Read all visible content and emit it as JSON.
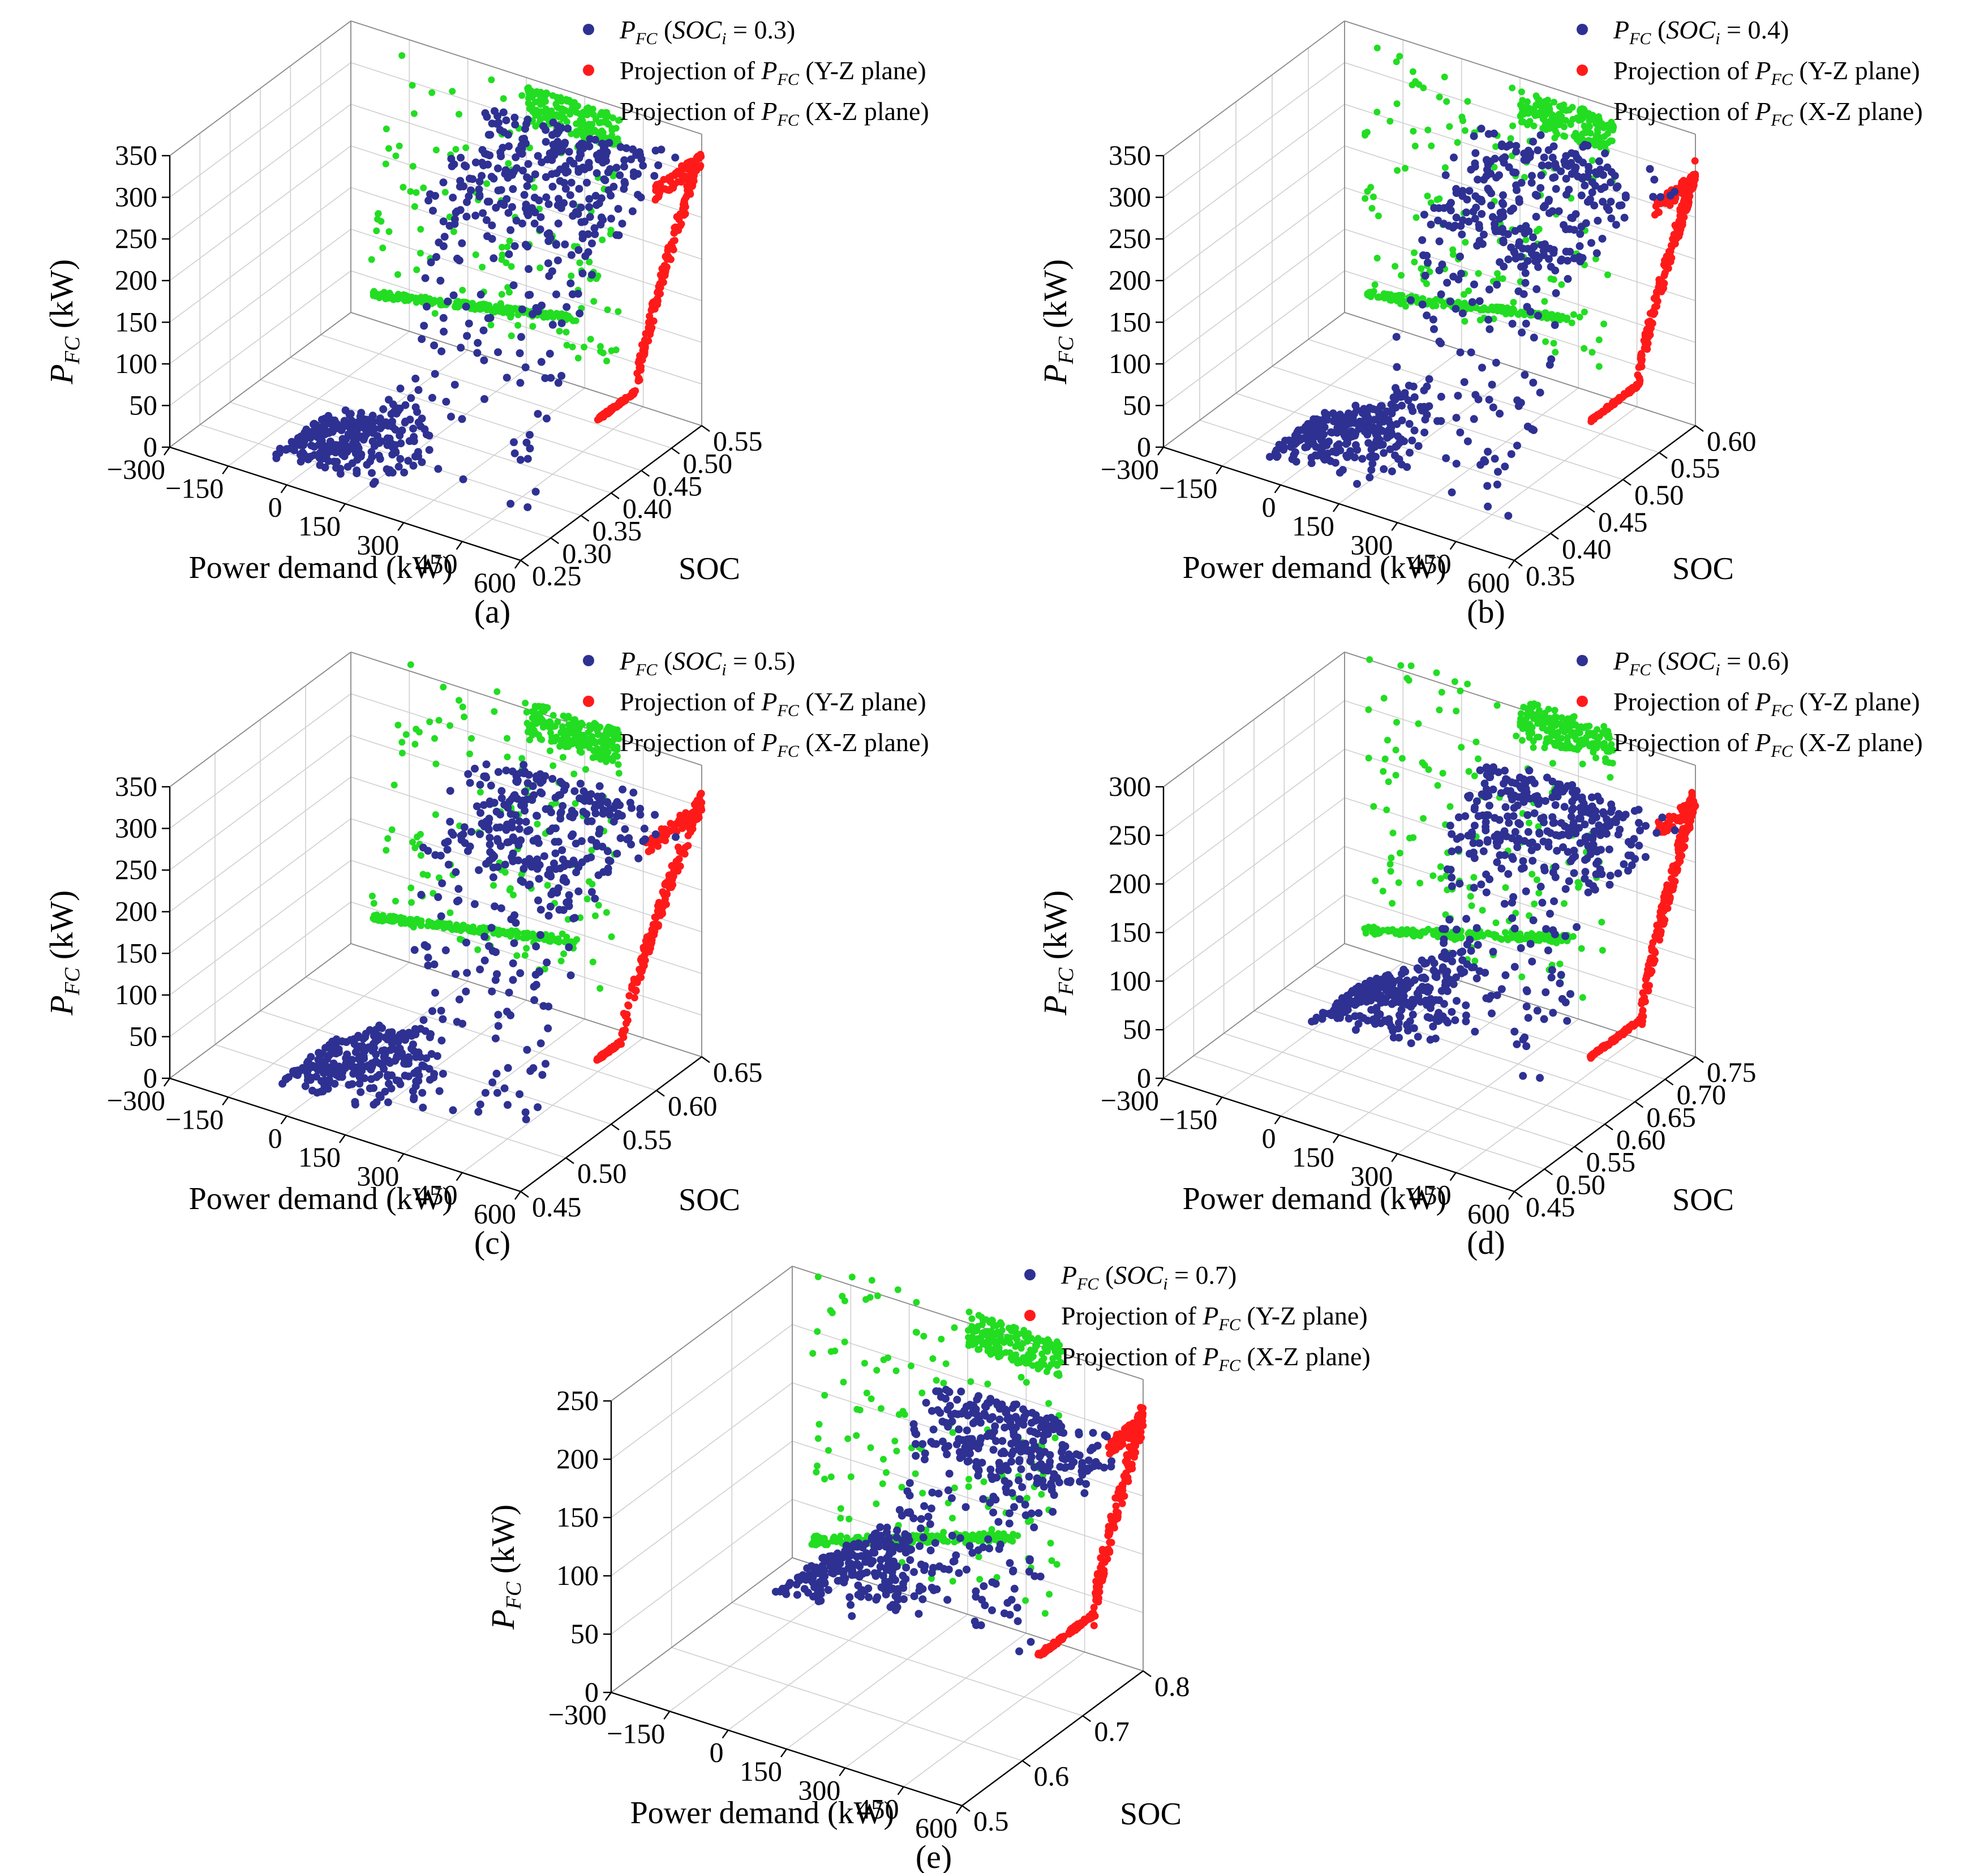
{
  "colors": {
    "fc": "#2e3192",
    "yz": "#ff1a1a",
    "xz": "#22dd22",
    "grid": "#cfcfcf",
    "text": "#000000"
  },
  "legend": {
    "pfc_symbol": "P",
    "pfc_sub": "FC",
    "soc_symbol": "SOC",
    "soc_sub": "i",
    "projection_prefix": "Projection of",
    "yz_suffix": "(Y-Z plane)",
    "xz_suffix": "(X-Z plane)"
  },
  "axes_text": {
    "x_label": "Power demand (kW)",
    "y_label": "SOC",
    "z_label_unit": "(kW)"
  },
  "chart_data": [
    {
      "id": "a",
      "caption": "(a)",
      "type": "scatter3d",
      "soc_initial": "0.3",
      "xlabel": "Power demand (kW)",
      "ylabel": "SOC",
      "zlabel": "P_FC (kW)",
      "xlim": [
        -300,
        600
      ],
      "xticks": [
        "−300",
        "−150",
        "0",
        "150",
        "300",
        "450",
        "600"
      ],
      "ylim": [
        0.25,
        0.55
      ],
      "yticks": [
        "0.25",
        "0.30",
        "0.35",
        "0.40",
        "0.45",
        "0.50",
        "0.55"
      ],
      "zlim": [
        0,
        350
      ],
      "zticks": [
        "0",
        "50",
        "100",
        "150",
        "200",
        "250",
        "300",
        "350"
      ],
      "series": [
        {
          "name": "P_FC (SOC_i = 0.3)",
          "low_level": 10,
          "high_level": 320,
          "rise_soc": 0.37,
          "low_soc_range": [
            0.27,
            0.36
          ]
        },
        {
          "name": "Projection of P_FC (Y-Z plane)",
          "base": 100,
          "top": 330,
          "rise_soc": 0.44
        },
        {
          "name": "Projection of P_FC (X-Z plane)",
          "low": 30,
          "mid": 80,
          "high": 340
        }
      ]
    },
    {
      "id": "b",
      "caption": "(b)",
      "type": "scatter3d",
      "soc_initial": "0.4",
      "xlabel": "Power demand (kW)",
      "ylabel": "SOC",
      "zlabel": "P_FC (kW)",
      "xlim": [
        -300,
        600
      ],
      "xticks": [
        "−300",
        "−150",
        "0",
        "150",
        "300",
        "450",
        "600"
      ],
      "ylim": [
        0.35,
        0.6
      ],
      "yticks": [
        "0.35",
        "0.40",
        "0.45",
        "0.50",
        "0.55",
        "0.60"
      ],
      "zlim": [
        0,
        350
      ],
      "zticks": [
        "0",
        "50",
        "100",
        "150",
        "200",
        "250",
        "300",
        "350"
      ],
      "series": [
        {
          "name": "P_FC (SOC_i = 0.4)",
          "low_level": 10,
          "high_level": 300,
          "rise_soc": 0.44,
          "low_soc_range": [
            0.37,
            0.45
          ]
        },
        {
          "name": "Projection of P_FC (Y-Z plane)",
          "base": 100,
          "top": 305,
          "rise_soc": 0.52
        },
        {
          "name": "Projection of P_FC (X-Z plane)",
          "low": 30,
          "mid": 80,
          "high": 335
        }
      ]
    },
    {
      "id": "c",
      "caption": "(c)",
      "type": "scatter3d",
      "soc_initial": "0.5",
      "xlabel": "Power demand (kW)",
      "ylabel": "SOC",
      "zlabel": "P_FC (kW)",
      "xlim": [
        -300,
        600
      ],
      "xticks": [
        "−300",
        "−150",
        "0",
        "150",
        "300",
        "450",
        "600"
      ],
      "ylim": [
        0.45,
        0.65
      ],
      "yticks": [
        "0.45",
        "0.50",
        "0.55",
        "0.60",
        "0.65"
      ],
      "zlim": [
        0,
        350
      ],
      "zticks": [
        "0",
        "50",
        "100",
        "150",
        "200",
        "250",
        "300",
        "350"
      ],
      "series": [
        {
          "name": "P_FC (SOC_i = 0.5)",
          "low_level": 10,
          "high_level": 300,
          "rise_soc": 0.53,
          "low_soc_range": [
            0.47,
            0.54
          ]
        },
        {
          "name": "Projection of P_FC (Y-Z plane)",
          "base": 90,
          "top": 310,
          "rise_soc": 0.56
        },
        {
          "name": "Projection of P_FC (X-Z plane)",
          "low": 40,
          "mid": 90,
          "high": 360
        }
      ]
    },
    {
      "id": "d",
      "caption": "(d)",
      "type": "scatter3d",
      "soc_initial": "0.6",
      "xlabel": "Power demand (kW)",
      "ylabel": "SOC",
      "zlabel": "P_FC (kW)",
      "xlim": [
        -300,
        600
      ],
      "xticks": [
        "−300",
        "−150",
        "0",
        "150",
        "300",
        "450",
        "600"
      ],
      "ylim": [
        0.45,
        0.75
      ],
      "yticks": [
        "0.45",
        "0.50",
        "0.55",
        "0.60",
        "0.65",
        "0.70",
        "0.75"
      ],
      "zlim": [
        0,
        300
      ],
      "zticks": [
        "0",
        "50",
        "100",
        "150",
        "200",
        "250",
        "300"
      ],
      "series": [
        {
          "name": "P_FC (SOC_i = 0.6)",
          "low_level": 40,
          "high_level": 250,
          "rise_soc": 0.62,
          "low_soc_range": [
            0.55,
            0.64
          ]
        },
        {
          "name": "Projection of P_FC (Y-Z plane)",
          "base": 80,
          "top": 270,
          "rise_soc": 0.66
        },
        {
          "name": "Projection of P_FC (X-Z plane)",
          "low": 20,
          "mid": 80,
          "high": 310
        }
      ]
    },
    {
      "id": "e",
      "caption": "(e)",
      "type": "scatter3d",
      "soc_initial": "0.7",
      "xlabel": "Power demand (kW)",
      "ylabel": "SOC",
      "zlabel": "P_FC (kW)",
      "xlim": [
        -300,
        600
      ],
      "xticks": [
        "−300",
        "−150",
        "0",
        "150",
        "300",
        "450",
        "600"
      ],
      "ylim": [
        0.45,
        0.85
      ],
      "yticks": [
        "0.5",
        "0.6",
        "0.7",
        "0.8"
      ],
      "zlim": [
        0,
        250
      ],
      "zticks": [
        "0",
        "50",
        "100",
        "150",
        "200",
        "250"
      ],
      "series": [
        {
          "name": "P_FC (SOC_i = 0.7)",
          "low_level": 60,
          "high_level": 200,
          "rise_soc": 0.72,
          "low_soc_range": [
            0.62,
            0.73
          ]
        },
        {
          "name": "Projection of P_FC (Y-Z plane)",
          "base": 80,
          "top": 220,
          "rise_soc": 0.74
        },
        {
          "name": "Projection of P_FC (X-Z plane)",
          "low": 20,
          "mid": 80,
          "high": 260
        }
      ]
    }
  ]
}
